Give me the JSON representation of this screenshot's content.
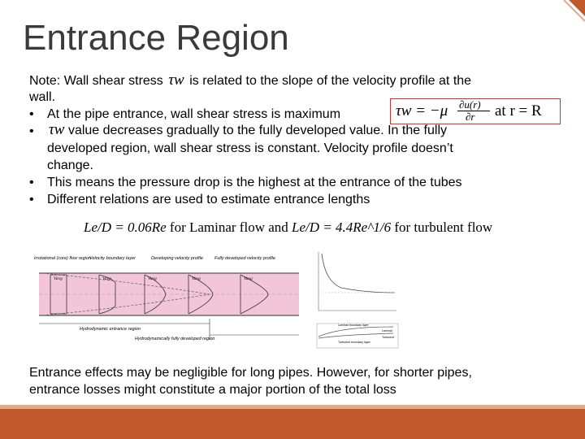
{
  "slide": {
    "title": "Entrance Region",
    "note": {
      "prefix": "Note: Wall shear stress",
      "symbol": "τw",
      "suffix": "is related to the slope of the velocity profile at the",
      "cont": "wall."
    },
    "bullets": [
      {
        "text": "At the pipe entrance,  wall shear stress is maximum"
      },
      {
        "symbol": "τw",
        "text": "value decreases gradually to the fully developed value. In the fully"
      },
      {
        "text": "developed region, wall shear stress is constant. Velocity profile doesn’t"
      },
      {
        "text": "change."
      },
      {
        "text": "This means the pressure drop is the highest at the entrance of the tubes"
      },
      {
        "text": "Different relations are used to estimate entrance lengths"
      }
    ],
    "bullet_char": "•",
    "shear_equation": {
      "lhs": "τw = −μ",
      "numerator": "∂u(r)",
      "denominator": "∂r",
      "condition": "at  r = R"
    },
    "entrance_length": {
      "laminar_expr": "Le/D = 0.06Re",
      "laminar_label": "for Laminar flow and",
      "turbulent_expr": "Le/D = 4.4Re^1/6",
      "turbulent_label": "for turbulent flow"
    },
    "figure_left": {
      "labels": [
        "Irrotational (core) flow region",
        "Velocity boundary layer",
        "Developing velocity profile",
        "Fully developed velocity profile"
      ],
      "vavg": "Vavg",
      "bottom_labels": [
        "Hydrodynamic entrance region",
        "Hydrodynamically fully developed region"
      ]
    },
    "figure_right": {
      "legend_top": [
        "Laminar boundary layer",
        "Turbulent boundary layer"
      ],
      "legend_bottom": [
        "Laminar",
        "Turbulent"
      ]
    },
    "closing": {
      "line1": "Entrance effects may be negligible for long pipes. However, for shorter pipes,",
      "line2": "entrance losses might constitute a major portion of the total loss"
    },
    "colors": {
      "title": "#3a3a3a",
      "accent_bar": "#c0582c",
      "equation_box": "#d0312d",
      "pipe_fill": "#f2c6d8"
    }
  }
}
